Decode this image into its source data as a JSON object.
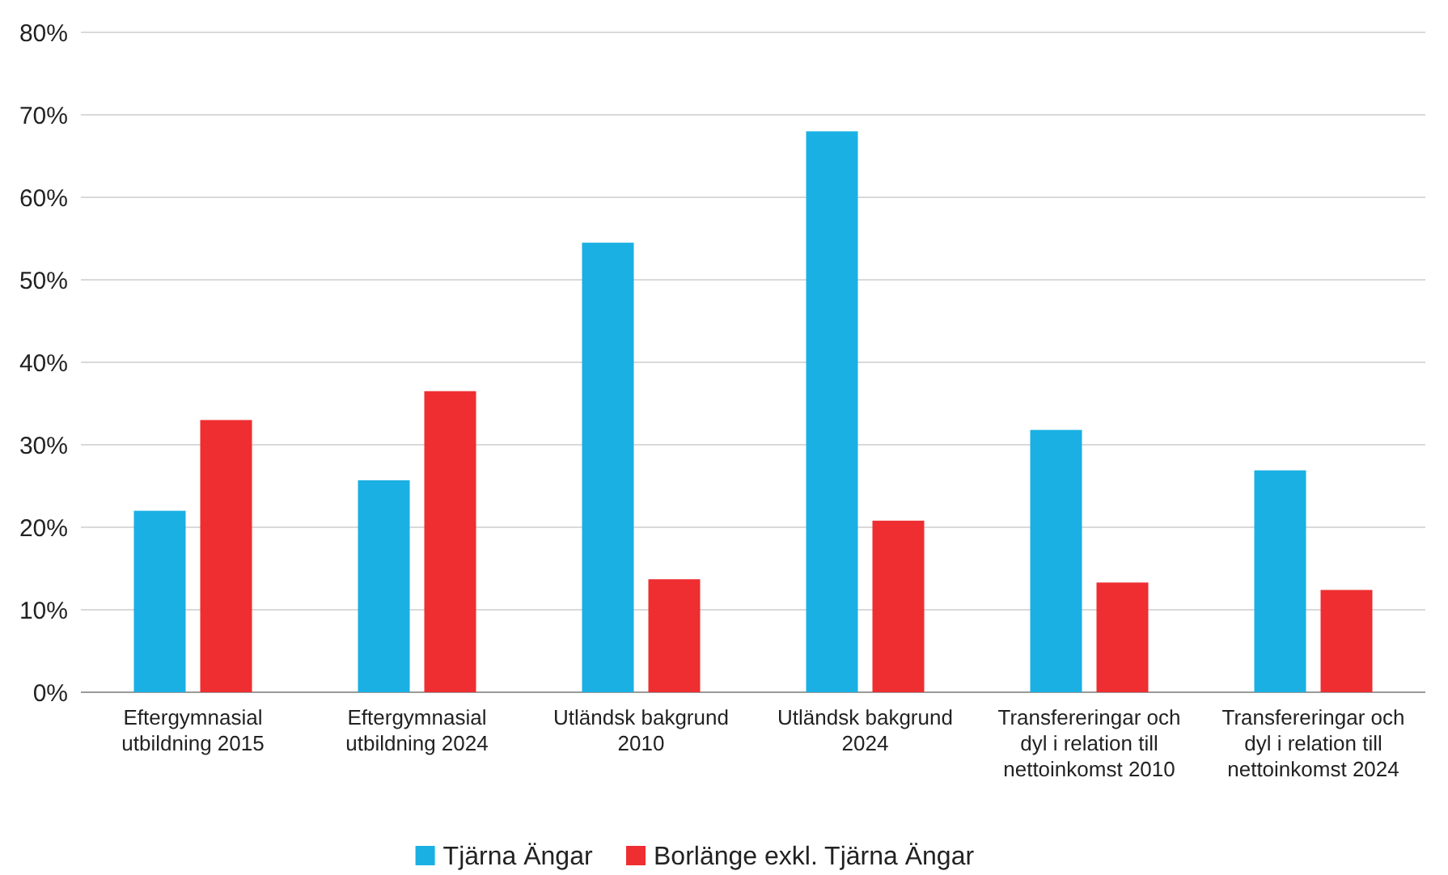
{
  "chart_data": {
    "type": "bar",
    "categories": [
      "Eftergymnasial utbildning 2015",
      "Eftergymnasial utbildning 2024",
      "Utländsk bakgrund 2010",
      "Utländsk bakgrund 2024",
      "Transfereringar och dyl i relation till nettoinkomst 2010",
      "Transfereringar och dyl i relation till nettoinkomst 2024"
    ],
    "series": [
      {
        "name": "Tjärna Ängar",
        "color": "#1ab0e3",
        "values": [
          22,
          25.7,
          54.5,
          68,
          31.8,
          26.9
        ]
      },
      {
        "name": "Borlänge exkl. Tjärna Ängar",
        "color": "#ee2e31",
        "values": [
          33,
          36.5,
          13.7,
          20.8,
          13.3,
          12.4
        ]
      }
    ],
    "ylim": [
      0,
      80
    ],
    "yticks": [
      {
        "value": 0,
        "label": "0%"
      },
      {
        "value": 10,
        "label": "10%"
      },
      {
        "value": 20,
        "label": "20%"
      },
      {
        "value": 30,
        "label": "30%"
      },
      {
        "value": 40,
        "label": "40%"
      },
      {
        "value": 50,
        "label": "50%"
      },
      {
        "value": 60,
        "label": "60%"
      },
      {
        "value": 70,
        "label": "70%"
      },
      {
        "value": 80,
        "label": "80%"
      }
    ],
    "grid": "y",
    "legend": "bottom"
  }
}
